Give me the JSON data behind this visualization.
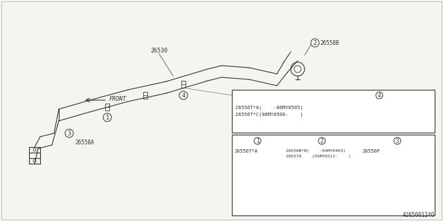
{
  "bg_color": "#f5f5f0",
  "border_color": "#333333",
  "title_bottom": "A265001240",
  "part_label_26530": "26530",
  "part_label_26558B": "26558B",
  "part_label_26558A": "26558A",
  "front_label": "FRONT",
  "callout1": "1",
  "callout2": "2",
  "callout3": "3",
  "callout4": "4",
  "table_upper_header": "4",
  "table_upper_line1": "26556T*A(    -06MY0505)",
  "table_upper_line2": "26556T*C(06MY0506-    )",
  "table_lower_col1_header": "1",
  "table_lower_col2_header": "2",
  "table_lower_col3_header": "3",
  "table_lower_col1_line1": "26556T*A",
  "table_lower_col2_line1": "26556N*B(    -04MY0403)",
  "table_lower_col2_line2": "265570    (05MY0312-    )",
  "table_lower_col3_line1": "26556P"
}
